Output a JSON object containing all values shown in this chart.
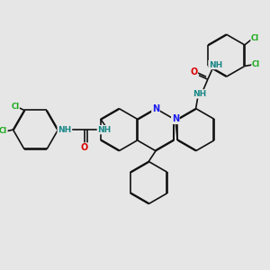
{
  "bg_color": "#e6e6e6",
  "bond_color": "#111111",
  "bond_width": 1.2,
  "dbo": 0.012,
  "atom_colors": {
    "N": "#1a1aee",
    "O": "#dd0000",
    "Cl": "#1aaa1a",
    "NH": "#1a8888"
  },
  "fs": 6.5
}
